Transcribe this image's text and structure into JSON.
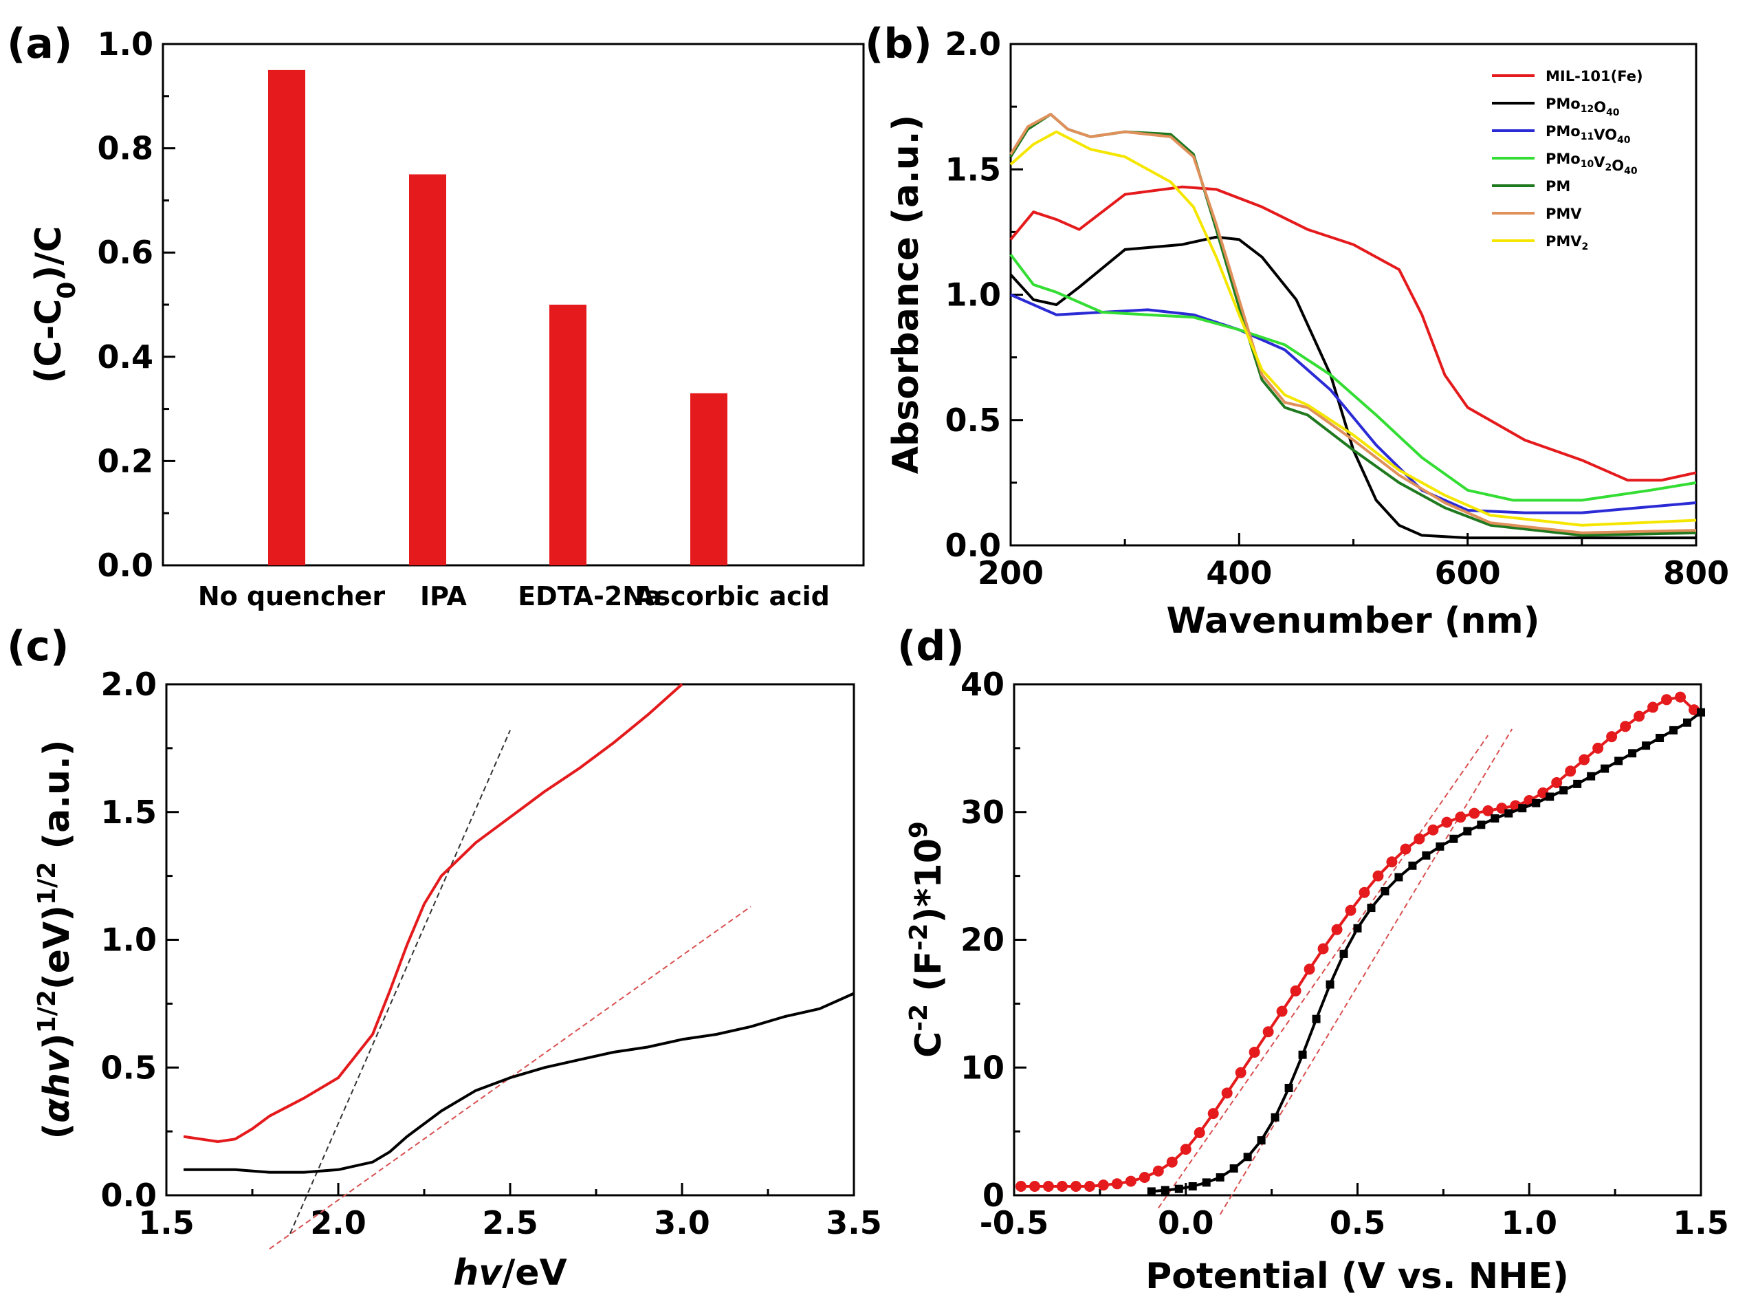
{
  "panel_labels": [
    "(a)",
    "(b)",
    "(c)",
    "(d)"
  ],
  "colors": {
    "red": "#e41a1c",
    "black": "#000000",
    "blue": "#2b2bd6",
    "light_green": "#33dd33",
    "dark_green": "#1f7a1f",
    "orange": "#e0905a",
    "yellow": "#f5e600",
    "fit_red": "#d95050",
    "fit_black": "#333333"
  },
  "chart_data": [
    {
      "panel": "(a)",
      "type": "bar",
      "categories": [
        "No quencher",
        "IPA",
        "EDTA-2Na",
        "Ascorbic acid"
      ],
      "values": [
        0.95,
        0.75,
        0.5,
        0.33
      ],
      "ylabel": "(C-C0)/C",
      "ylabel_main": "(C-C",
      "ylabel_sub": "0",
      "ylabel_end": ")/C",
      "xlabel": "",
      "ylim": [
        0,
        1.0
      ],
      "yticks": [
        "0.0",
        "0.2",
        "0.4",
        "0.6",
        "0.8",
        "1.0"
      ]
    },
    {
      "panel": "(b)",
      "type": "line",
      "xlabel": "Wavenumber (nm)",
      "ylabel": "Absorbance (a.u.)",
      "xlim": [
        200,
        800
      ],
      "ylim": [
        0,
        2.0
      ],
      "xticks": [
        "200",
        "400",
        "600",
        "800"
      ],
      "yticks": [
        "0.0",
        "0.5",
        "1.0",
        "1.5",
        "2.0"
      ],
      "legend_position": "top-right",
      "series": [
        {
          "name": "MIL-101(Fe)",
          "color": "red",
          "x": [
            200,
            220,
            240,
            260,
            300,
            350,
            380,
            420,
            460,
            500,
            540,
            560,
            580,
            600,
            650,
            700,
            740,
            770,
            800
          ],
          "y": [
            1.22,
            1.33,
            1.3,
            1.26,
            1.4,
            1.43,
            1.42,
            1.35,
            1.26,
            1.2,
            1.1,
            0.92,
            0.68,
            0.55,
            0.42,
            0.34,
            0.26,
            0.26,
            0.29
          ]
        },
        {
          "name": "PMo12O40",
          "color": "black",
          "x": [
            200,
            220,
            240,
            260,
            300,
            350,
            380,
            400,
            420,
            450,
            480,
            500,
            520,
            540,
            560,
            600,
            700,
            800
          ],
          "y": [
            1.08,
            0.98,
            0.96,
            1.03,
            1.18,
            1.2,
            1.23,
            1.22,
            1.15,
            0.98,
            0.68,
            0.38,
            0.18,
            0.08,
            0.04,
            0.03,
            0.03,
            0.03
          ]
        },
        {
          "name": "PMo11VO40",
          "color": "blue",
          "x": [
            200,
            240,
            280,
            320,
            360,
            400,
            440,
            480,
            520,
            560,
            600,
            650,
            700,
            750,
            800
          ],
          "y": [
            1.0,
            0.92,
            0.93,
            0.94,
            0.92,
            0.86,
            0.78,
            0.62,
            0.4,
            0.22,
            0.14,
            0.13,
            0.13,
            0.15,
            0.17
          ]
        },
        {
          "name": "PMo10V2O40",
          "color": "light_green",
          "x": [
            200,
            220,
            240,
            280,
            320,
            360,
            400,
            440,
            480,
            520,
            560,
            600,
            640,
            700,
            760,
            800
          ],
          "y": [
            1.16,
            1.04,
            1.01,
            0.93,
            0.92,
            0.91,
            0.86,
            0.8,
            0.68,
            0.52,
            0.35,
            0.22,
            0.18,
            0.18,
            0.22,
            0.25
          ]
        },
        {
          "name": "PM",
          "color": "dark_green",
          "x": [
            200,
            215,
            235,
            250,
            270,
            300,
            340,
            360,
            380,
            400,
            420,
            440,
            460,
            500,
            540,
            580,
            620,
            700,
            800
          ],
          "y": [
            1.55,
            1.66,
            1.72,
            1.66,
            1.63,
            1.65,
            1.64,
            1.56,
            1.26,
            0.95,
            0.66,
            0.55,
            0.52,
            0.38,
            0.25,
            0.15,
            0.08,
            0.04,
            0.05
          ]
        },
        {
          "name": "PMV",
          "color": "orange",
          "x": [
            200,
            215,
            235,
            250,
            270,
            300,
            340,
            360,
            380,
            400,
            420,
            440,
            460,
            500,
            540,
            580,
            620,
            700,
            800
          ],
          "y": [
            1.56,
            1.67,
            1.72,
            1.66,
            1.63,
            1.65,
            1.63,
            1.55,
            1.28,
            0.98,
            0.68,
            0.57,
            0.55,
            0.42,
            0.28,
            0.17,
            0.09,
            0.05,
            0.06
          ]
        },
        {
          "name": "PMV2",
          "color": "yellow",
          "x": [
            200,
            220,
            240,
            270,
            300,
            340,
            360,
            380,
            400,
            420,
            440,
            460,
            500,
            540,
            580,
            620,
            700,
            800
          ],
          "y": [
            1.52,
            1.6,
            1.65,
            1.58,
            1.55,
            1.45,
            1.35,
            1.15,
            0.92,
            0.7,
            0.6,
            0.56,
            0.44,
            0.3,
            0.2,
            0.12,
            0.08,
            0.1
          ]
        }
      ]
    },
    {
      "panel": "(c)",
      "type": "line",
      "xlabel": "hv/eV",
      "xlabel_italic": "hv",
      "xlabel_rest": "/eV",
      "ylabel": "(αhv)^1/2(eV)^1/2 (a.u.)",
      "ylabel_open": "(",
      "ylabel_alpha": "α",
      "ylabel_hv": "hv",
      "ylabel_close": ")",
      "ylabel_sup": "1/2",
      "ylabel_ev": "(eV)",
      "ylabel_units": " (a.u.)",
      "xlim": [
        1.5,
        3.5
      ],
      "ylim": [
        0,
        2.0
      ],
      "xticks": [
        "1.5",
        "2.0",
        "2.5",
        "3.0",
        "3.5"
      ],
      "yticks": [
        "0.0",
        "0.5",
        "1.0",
        "1.5",
        "2.0"
      ],
      "series": [
        {
          "name": "red curve",
          "color": "red",
          "x": [
            1.55,
            1.6,
            1.65,
            1.7,
            1.75,
            1.8,
            1.9,
            2.0,
            2.1,
            2.15,
            2.2,
            2.25,
            2.3,
            2.4,
            2.5,
            2.6,
            2.7,
            2.8,
            2.9,
            3.0
          ],
          "y": [
            0.23,
            0.22,
            0.21,
            0.22,
            0.26,
            0.31,
            0.38,
            0.46,
            0.63,
            0.8,
            0.98,
            1.14,
            1.25,
            1.38,
            1.48,
            1.58,
            1.67,
            1.77,
            1.88,
            2.0
          ]
        },
        {
          "name": "black curve",
          "color": "black",
          "x": [
            1.55,
            1.7,
            1.8,
            1.9,
            2.0,
            2.1,
            2.15,
            2.2,
            2.3,
            2.4,
            2.5,
            2.6,
            2.7,
            2.8,
            2.9,
            3.0,
            3.1,
            3.2,
            3.3,
            3.4,
            3.5
          ],
          "y": [
            0.1,
            0.1,
            0.09,
            0.09,
            0.1,
            0.13,
            0.17,
            0.23,
            0.33,
            0.41,
            0.46,
            0.5,
            0.53,
            0.56,
            0.58,
            0.61,
            0.63,
            0.66,
            0.7,
            0.73,
            0.79
          ]
        }
      ],
      "fit_lines": [
        {
          "color": "fit_black",
          "x": [
            1.86,
            2.5
          ],
          "y": [
            -0.15,
            1.82
          ]
        },
        {
          "color": "fit_red",
          "x": [
            1.8,
            3.2
          ],
          "y": [
            -0.21,
            1.13
          ]
        }
      ]
    },
    {
      "panel": "(d)",
      "type": "line",
      "xlabel": "Potential (V vs. NHE)",
      "ylabel": "C^-2 (F^-2)*10^9",
      "ylabel_c": "C",
      "ylabel_csup": "-2",
      "ylabel_f": " (F",
      "ylabel_fsup": "-2",
      "ylabel_mul": ")*10",
      "ylabel_tsup": "9",
      "xlim": [
        -0.5,
        1.5
      ],
      "ylim": [
        0,
        40
      ],
      "xticks": [
        "-0.5",
        "0.0",
        "0.5",
        "1.0",
        "1.5"
      ],
      "yticks": [
        "0",
        "10",
        "20",
        "30",
        "40"
      ],
      "series": [
        {
          "name": "red markers",
          "color": "red",
          "marker": "circle",
          "x": [
            -0.48,
            -0.44,
            -0.4,
            -0.36,
            -0.32,
            -0.28,
            -0.24,
            -0.2,
            -0.16,
            -0.12,
            -0.08,
            -0.04,
            0.0,
            0.04,
            0.08,
            0.12,
            0.16,
            0.2,
            0.24,
            0.28,
            0.32,
            0.36,
            0.4,
            0.44,
            0.48,
            0.52,
            0.56,
            0.6,
            0.64,
            0.68,
            0.72,
            0.76,
            0.8,
            0.84,
            0.88,
            0.92,
            0.96,
            1.0,
            1.04,
            1.08,
            1.12,
            1.16,
            1.2,
            1.24,
            1.28,
            1.32,
            1.36,
            1.4,
            1.44,
            1.48
          ],
          "y": [
            0.7,
            0.7,
            0.7,
            0.7,
            0.7,
            0.7,
            0.8,
            0.9,
            1.1,
            1.4,
            1.9,
            2.6,
            3.6,
            4.9,
            6.4,
            8.0,
            9.6,
            11.2,
            12.8,
            14.4,
            16.0,
            17.7,
            19.3,
            20.8,
            22.3,
            23.7,
            25.0,
            26.1,
            27.1,
            27.9,
            28.6,
            29.2,
            29.6,
            29.9,
            30.1,
            30.3,
            30.5,
            30.9,
            31.5,
            32.3,
            33.2,
            34.1,
            35.0,
            35.9,
            36.7,
            37.5,
            38.2,
            38.8,
            39.0,
            38.0
          ]
        },
        {
          "name": "black markers",
          "color": "black",
          "marker": "square",
          "x": [
            -0.1,
            -0.06,
            -0.02,
            0.02,
            0.06,
            0.1,
            0.14,
            0.18,
            0.22,
            0.26,
            0.3,
            0.34,
            0.38,
            0.42,
            0.46,
            0.5,
            0.54,
            0.58,
            0.62,
            0.66,
            0.7,
            0.74,
            0.78,
            0.82,
            0.86,
            0.9,
            0.94,
            0.98,
            1.02,
            1.06,
            1.1,
            1.14,
            1.18,
            1.22,
            1.26,
            1.3,
            1.34,
            1.38,
            1.42,
            1.46,
            1.5
          ],
          "y": [
            0.3,
            0.4,
            0.5,
            0.7,
            1.0,
            1.4,
            2.1,
            3.0,
            4.3,
            6.1,
            8.4,
            11.0,
            13.8,
            16.5,
            18.9,
            20.9,
            22.5,
            23.8,
            24.9,
            25.8,
            26.6,
            27.3,
            27.9,
            28.5,
            29.0,
            29.5,
            29.9,
            30.3,
            30.7,
            31.2,
            31.7,
            32.2,
            32.8,
            33.4,
            34.0,
            34.6,
            35.2,
            35.8,
            36.4,
            37.0,
            37.8
          ]
        }
      ],
      "fit_lines": [
        {
          "color": "fit_red",
          "x": [
            -0.08,
            0.88
          ],
          "y": [
            -1.0,
            36.0
          ]
        },
        {
          "color": "fit_red",
          "x": [
            0.1,
            0.95
          ],
          "y": [
            -1.5,
            36.5
          ]
        }
      ]
    }
  ],
  "legend_b": [
    {
      "label_main": "MIL-101(Fe)",
      "color": "red"
    },
    {
      "label_main": "PMo",
      "sub1": "12",
      "mid": "O",
      "sub2": "40",
      "color": "black"
    },
    {
      "label_main": "PMo",
      "sub1": "11",
      "mid": "VO",
      "sub2": "40",
      "color": "blue"
    },
    {
      "label_main": "PMo",
      "sub1": "10",
      "mid": "V",
      "sub2": "2",
      "end": "O",
      "sub3": "40",
      "color": "light_green"
    },
    {
      "label_main": "PM",
      "color": "dark_green"
    },
    {
      "label_main": "PMV",
      "color": "orange"
    },
    {
      "label_main": "PMV",
      "sub1": "2",
      "color": "yellow"
    }
  ]
}
